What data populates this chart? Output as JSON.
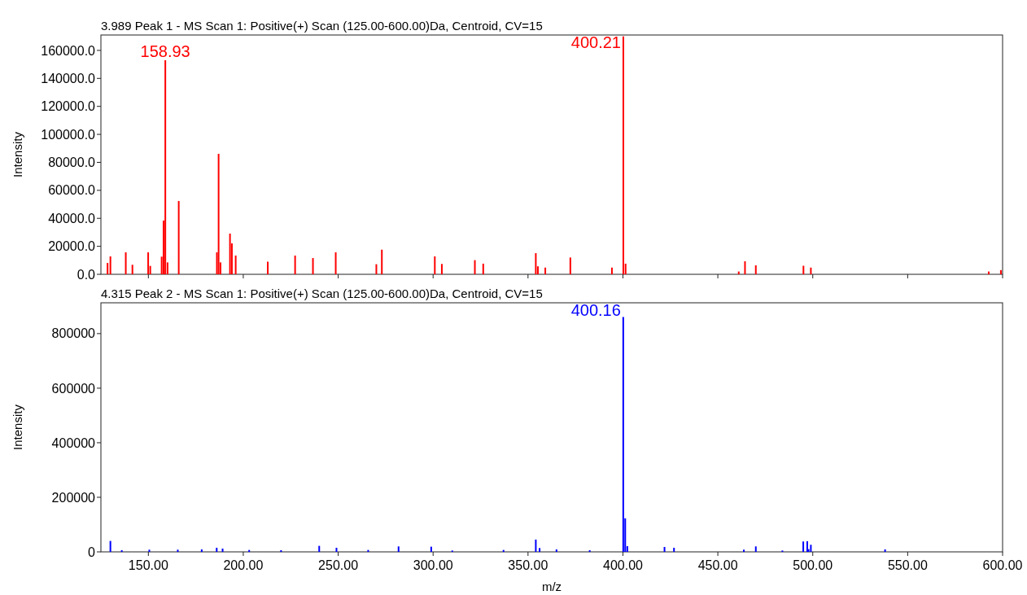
{
  "chart_data": [
    {
      "type": "bar",
      "title": "3.989 Peak 1 - MS Scan 1: Positive(+) Scan (125.00-600.00)Da, Centroid, CV=15",
      "ylabel": "Intensity",
      "tick_labels": "y",
      "grid": false,
      "legend": false,
      "x": [
        128.5,
        130.0,
        138.1,
        141.6,
        149.9,
        151.0,
        157.0,
        158.0,
        158.93,
        160.1,
        166.0,
        186.1,
        187.0,
        188.0,
        193.0,
        194.0,
        196.0,
        212.9,
        227.3,
        236.7,
        248.7,
        270.1,
        273.0,
        300.9,
        304.6,
        322.0,
        326.4,
        354.1,
        355.2,
        359.1,
        372.3,
        394.2,
        400.21,
        401.4,
        461.0,
        464.3,
        470.0,
        495.1,
        499.0,
        592.7,
        599.1
      ],
      "values": [
        8100,
        12800,
        15700,
        6800,
        15700,
        6000,
        12600,
        38400,
        153000,
        8500,
        52400,
        15700,
        86100,
        8500,
        29100,
        22100,
        13400,
        9000,
        13400,
        11600,
        15700,
        7200,
        17600,
        12800,
        7400,
        10100,
        7600,
        15100,
        5700,
        4800,
        12000,
        4800,
        170000,
        7600,
        2000,
        9300,
        6400,
        6100,
        4800,
        2000,
        3000
      ],
      "color": "#ff0000",
      "xlim": [
        125,
        600
      ],
      "xticks": [
        {
          "value": 150,
          "label": null
        },
        {
          "value": 200,
          "label": null
        },
        {
          "value": 250,
          "label": null
        },
        {
          "value": 300,
          "label": null
        },
        {
          "value": 350,
          "label": null
        },
        {
          "value": 400,
          "label": null
        },
        {
          "value": 450,
          "label": null
        },
        {
          "value": 500,
          "label": null
        },
        {
          "value": 550,
          "label": null
        },
        {
          "value": 600,
          "label": null
        }
      ],
      "ylim": [
        0,
        171000
      ],
      "yticks": [
        {
          "value": 0,
          "label": "0.0"
        },
        {
          "value": 20000,
          "label": "20000.0"
        },
        {
          "value": 40000,
          "label": "40000.0"
        },
        {
          "value": 60000,
          "label": "60000.0"
        },
        {
          "value": 80000,
          "label": "80000.0"
        },
        {
          "value": 100000,
          "label": "100000.0"
        },
        {
          "value": 120000,
          "label": "120000.0"
        },
        {
          "value": 140000,
          "label": "140000.0"
        },
        {
          "value": 160000,
          "label": "160000.0"
        }
      ],
      "annotations": [
        {
          "text": "158.93",
          "x": 158.93,
          "y": 153000
        },
        {
          "text": "400.21",
          "x": 400.21,
          "y": 170000
        }
      ]
    },
    {
      "type": "bar",
      "title": "4.315 Peak 2 - MS Scan 1: Positive(+) Scan (125.00-600.00)Da, Centroid, CV=15",
      "ylabel": "Intensity",
      "xlabel": "m/z",
      "grid": false,
      "legend": false,
      "x": [
        130.0,
        136.0,
        150.5,
        165.5,
        178.1,
        186.0,
        189.1,
        203.1,
        219.9,
        240.0,
        249.1,
        265.8,
        281.8,
        299.0,
        310.1,
        337.1,
        354.1,
        356.1,
        365.0,
        382.5,
        400.16,
        401.2,
        402.3,
        421.9,
        426.9,
        463.7,
        470.0,
        484.0,
        495.0,
        497.1,
        497.8,
        499.0,
        538.1
      ],
      "values": [
        40000,
        6000,
        8000,
        8000,
        9000,
        15000,
        12000,
        7000,
        6000,
        22000,
        15000,
        7000,
        20000,
        19000,
        5000,
        7000,
        45000,
        14000,
        9000,
        6000,
        861000,
        123000,
        21000,
        18000,
        15000,
        8000,
        20000,
        5000,
        38000,
        39000,
        10000,
        26000,
        9000
      ],
      "color": "#0000ff",
      "xlim": [
        125,
        600
      ],
      "xticks": [
        {
          "value": 150,
          "label": "150.00"
        },
        {
          "value": 200,
          "label": "200.00"
        },
        {
          "value": 250,
          "label": "250.00"
        },
        {
          "value": 300,
          "label": "300.00"
        },
        {
          "value": 350,
          "label": "350.00"
        },
        {
          "value": 400,
          "label": "400.00"
        },
        {
          "value": 450,
          "label": "450.00"
        },
        {
          "value": 500,
          "label": "500.00"
        },
        {
          "value": 550,
          "label": "550.00"
        },
        {
          "value": 600,
          "label": "600.00"
        }
      ],
      "ylim": [
        0,
        913000
      ],
      "yticks": [
        0,
        200000,
        400000,
        600000,
        800000
      ],
      "annotations": [
        {
          "text": "400.16",
          "x": 400.16,
          "y": 861000
        }
      ]
    }
  ]
}
